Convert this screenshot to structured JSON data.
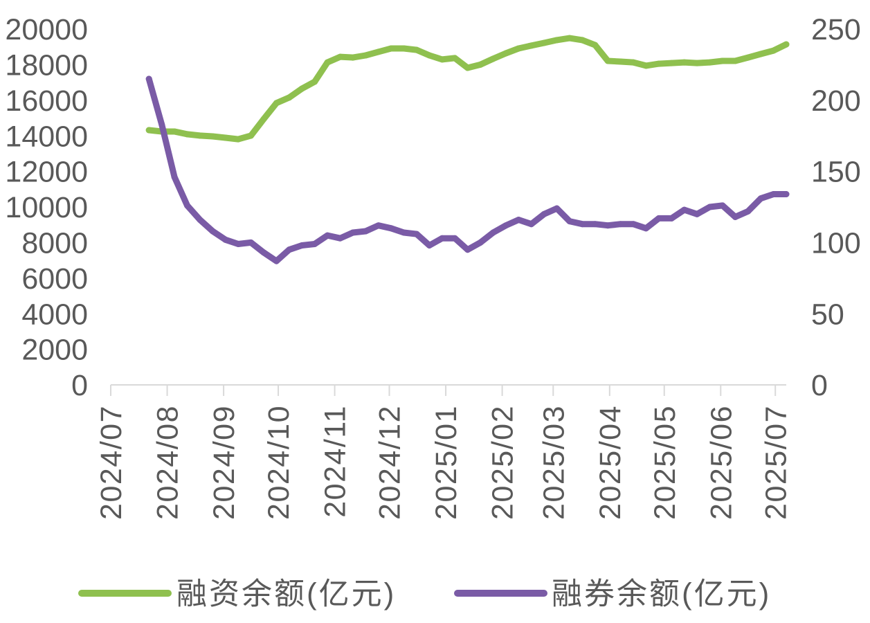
{
  "chart_data": {
    "type": "line",
    "x_axis": {
      "scale": "date",
      "range": [
        "2024-07-01",
        "2025-07-07"
      ],
      "tick_labels": [
        "2024/07",
        "2024/08",
        "2024/09",
        "2024/10",
        "2024/11",
        "2024/12",
        "2025/01",
        "2025/02",
        "2025/03",
        "2025/04",
        "2025/05",
        "2025/06",
        "2025/07"
      ]
    },
    "y_axis_left": {
      "range": [
        0,
        20000
      ],
      "tick_labels": [
        "0",
        "2000",
        "4000",
        "6000",
        "8000",
        "10000",
        "12000",
        "14000",
        "16000",
        "18000",
        "20000"
      ]
    },
    "y_axis_right": {
      "range": [
        0,
        250
      ],
      "tick_labels": [
        "0",
        "50",
        "100",
        "150",
        "200",
        "250"
      ]
    },
    "grid": false,
    "legend": "bottom",
    "x": [
      "2024-07-22",
      "2024-07-29",
      "2024-08-05",
      "2024-08-12",
      "2024-08-19",
      "2024-08-26",
      "2024-09-02",
      "2024-09-09",
      "2024-09-16",
      "2024-09-23",
      "2024-09-30",
      "2024-10-07",
      "2024-10-14",
      "2024-10-21",
      "2024-10-28",
      "2024-11-04",
      "2024-11-11",
      "2024-11-18",
      "2024-11-25",
      "2024-12-02",
      "2024-12-09",
      "2024-12-16",
      "2024-12-23",
      "2024-12-30",
      "2025-01-06",
      "2025-01-13",
      "2025-01-20",
      "2025-01-27",
      "2025-02-03",
      "2025-02-10",
      "2025-02-17",
      "2025-02-24",
      "2025-03-03",
      "2025-03-10",
      "2025-03-17",
      "2025-03-24",
      "2025-03-31",
      "2025-04-07",
      "2025-04-14",
      "2025-04-21",
      "2025-04-28",
      "2025-05-05",
      "2025-05-12",
      "2025-05-19",
      "2025-05-26",
      "2025-06-02",
      "2025-06-09",
      "2025-06-16",
      "2025-06-23",
      "2025-06-30",
      "2025-07-07"
    ],
    "series": [
      {
        "name": "融资余额(亿元)",
        "axis": "left",
        "color": "#8fc04f",
        "values": [
          14320,
          14240,
          14240,
          14090,
          14010,
          13970,
          13890,
          13810,
          14010,
          14940,
          15840,
          16150,
          16650,
          17040,
          18130,
          18440,
          18400,
          18520,
          18720,
          18910,
          18910,
          18830,
          18520,
          18290,
          18370,
          17820,
          18000,
          18330,
          18640,
          18910,
          19070,
          19220,
          19380,
          19490,
          19380,
          19100,
          18210,
          18170,
          18130,
          17940,
          18050,
          18090,
          18130,
          18090,
          18130,
          18210,
          18210,
          18400,
          18600,
          18790,
          19140
        ]
      },
      {
        "name": "融券余额(亿元)",
        "axis": "right",
        "color": "#7a5ba6",
        "values": [
          215,
          183,
          146,
          126,
          116,
          108,
          102,
          99,
          100,
          93,
          87,
          95,
          98,
          99,
          105,
          103,
          107,
          108,
          112,
          110,
          107,
          106,
          98,
          103,
          103,
          95,
          100,
          107,
          112,
          116,
          113,
          120,
          124,
          115,
          113,
          113,
          112,
          113,
          113,
          110,
          117,
          117,
          123,
          120,
          125,
          126,
          118,
          122,
          131,
          134,
          134
        ]
      }
    ]
  }
}
